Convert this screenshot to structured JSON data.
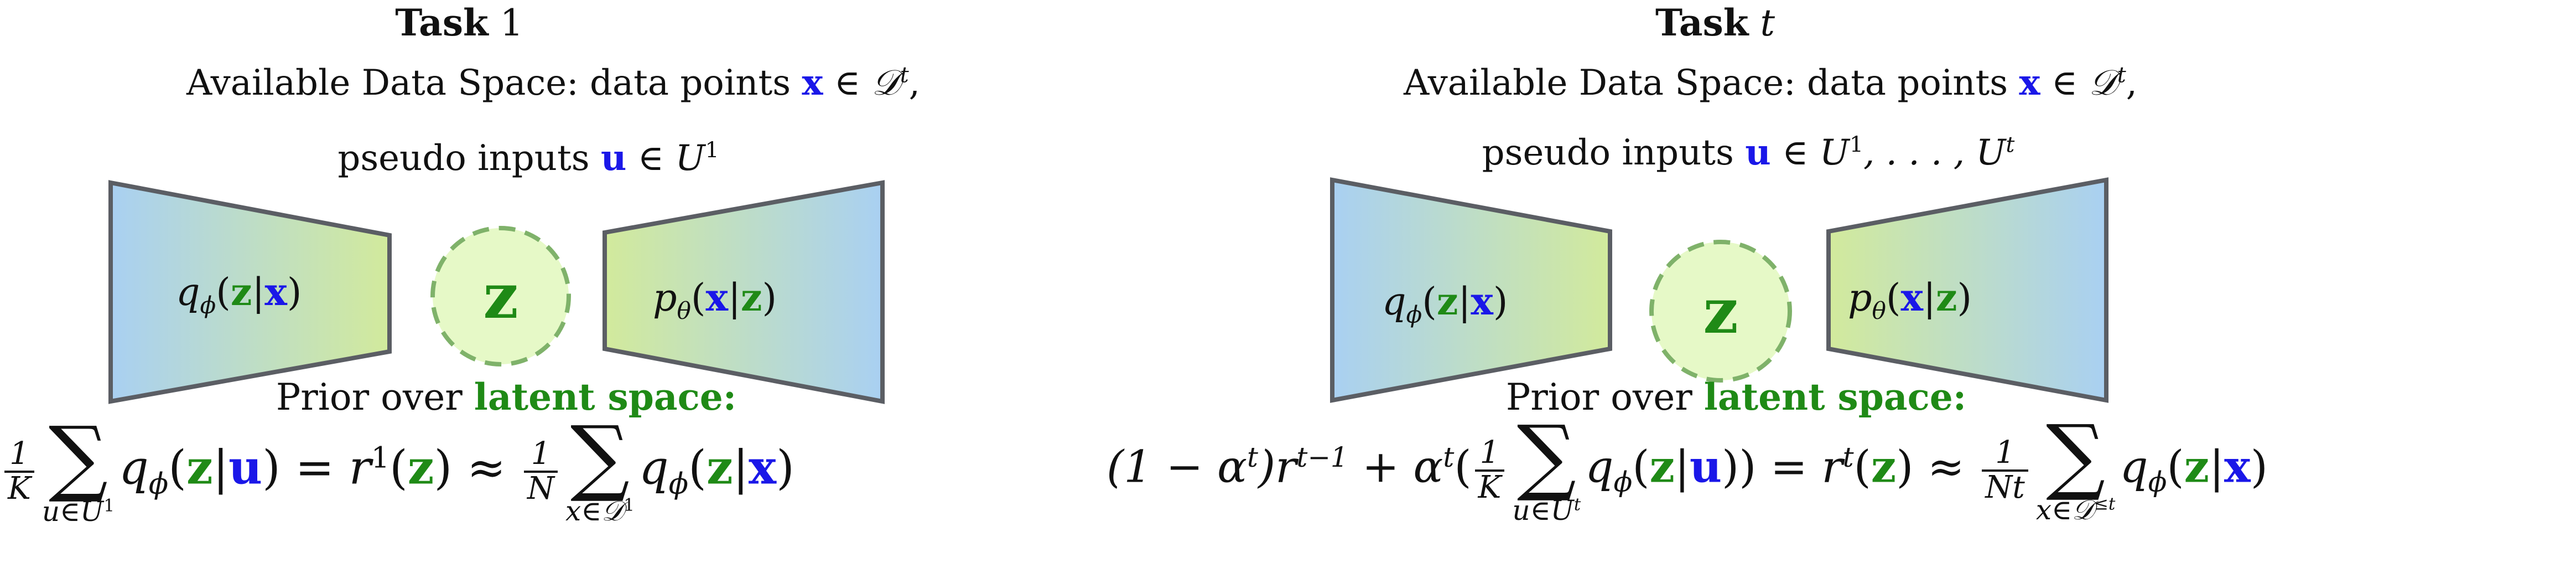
{
  "colors": {
    "data_blue": "#1a17e8",
    "latent_green": "#1f8a16",
    "encoder_grad": [
      "#a9d0f2",
      "#d2ea9c"
    ],
    "z_fill": "#e6f9c7",
    "z_border": "#7fb26a",
    "shape_stroke": "#5b5e64"
  },
  "panels": [
    {
      "title_bold": "Task",
      "title_index": "1",
      "data_space_text": "Available Data Space: data points",
      "data_symbol": "x",
      "data_set": "∈ 𝒟",
      "data_set_sup": "t",
      "data_trail": ",",
      "pseudo_text": "pseudo inputs",
      "pseudo_symbol": "u",
      "pseudo_set": "∈ U",
      "pseudo_set_sup": "1",
      "encoder_label": "q",
      "encoder_sub": "ϕ",
      "encoder_arg_z": "z",
      "encoder_arg_x": "x",
      "latent_symbol": "z",
      "decoder_label": "p",
      "decoder_sub": "θ",
      "decoder_arg_x": "x",
      "decoder_arg_z": "z",
      "prior_text": "Prior over",
      "prior_highlight": "latent space:",
      "eq_frac1_num": "1",
      "eq_frac1_den": "K",
      "eq_sum1_sub": "u∈U",
      "eq_sum1_sub_sup": "1",
      "eq_q_mid": "q",
      "eq_q_sub": "ϕ",
      "eq_q_z": "z",
      "eq_q_u": "u",
      "eq_equals": "= r",
      "eq_r_sup": "1",
      "eq_r_z": "z",
      "eq_approx": "≈",
      "eq_frac2_num": "1",
      "eq_frac2_den": "N",
      "eq_sum2_sub": "x∈𝒟",
      "eq_sum2_sub_sup": "1",
      "eq_q2": "q",
      "eq_q2_sub": "ϕ",
      "eq_q2_z": "z",
      "eq_q2_x": "x"
    },
    {
      "title_bold": "Task",
      "title_index": "t",
      "data_space_text": "Available Data Space: data points",
      "data_symbol": "x",
      "data_set": "∈ 𝒟",
      "data_set_sup": "t",
      "data_trail": ",",
      "pseudo_text": "pseudo inputs",
      "pseudo_symbol": "u",
      "pseudo_set": "∈ U",
      "pseudo_set_sup": "1",
      "pseudo_set_rest": ", . . . , U",
      "pseudo_set_rest_sup": "t",
      "encoder_label": "q",
      "encoder_sub": "ϕ",
      "encoder_arg_z": "z",
      "encoder_arg_x": "x",
      "latent_symbol": "z",
      "decoder_label": "p",
      "decoder_sub": "θ",
      "decoder_arg_x": "x",
      "decoder_arg_z": "z",
      "prior_text": "Prior over",
      "prior_highlight": "latent space:",
      "eq_lead": "(1 − α",
      "eq_lead_sup": "t",
      "eq_lead2": ")r",
      "eq_lead2_sup": "t−1",
      "eq_plus": "+ α",
      "eq_plus_sup": "t",
      "eq_open": "(",
      "eq_frac1_num": "1",
      "eq_frac1_den": "K",
      "eq_sum1_sub": "u∈U",
      "eq_sum1_sub_sup": "t",
      "eq_q_mid": "q",
      "eq_q_sub": "ϕ",
      "eq_q_z": "z",
      "eq_q_u": "u",
      "eq_close": "))",
      "eq_equals": "= r",
      "eq_r_sup": "t",
      "eq_r_z": "z",
      "eq_approx": "≈",
      "eq_frac2_num": "1",
      "eq_frac2_den": "Nt",
      "eq_sum2_sub": "x∈𝒟",
      "eq_sum2_sub_sup": "≤t",
      "eq_q2": "q",
      "eq_q2_sub": "ϕ",
      "eq_q2_z": "z",
      "eq_q2_x": "x"
    }
  ]
}
